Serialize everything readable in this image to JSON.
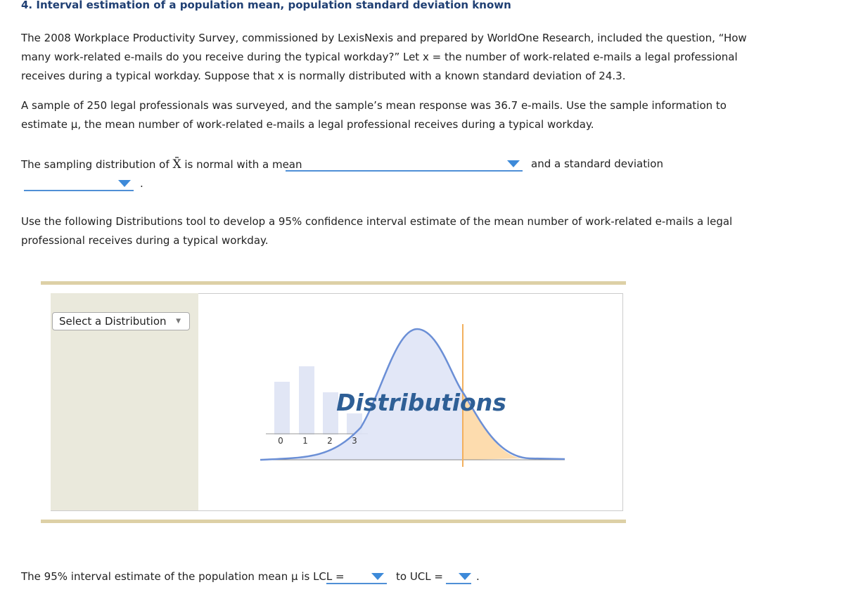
{
  "header": {
    "title": "4. Interval estimation of a population mean, population standard deviation known"
  },
  "paragraphs": [
    "The 2008 Workplace Productivity Survey, commissioned by LexisNexis and prepared by WorldOne Research, included the question, “How many work-related e-mails do you receive during the typical workday?” Let x = the number of work-related e-mails a legal professional receives during a typical workday. Suppose that x is normally distributed with a known standard deviation of 24.3.",
    "A sample of 250 legal professionals was surveyed, and the sample’s mean response was 36.7 e-mails. Use the sample information to estimate μ, the mean number of work-related e-mails a legal professional receives during a typical workday."
  ],
  "sampling": {
    "lead": "The sampling distribution of",
    "symbol": "X̄",
    "middle": "is normal with a mean",
    "after": "and a standard deviation",
    "end": "."
  },
  "instruction": "Use the following Distributions tool to develop a 95% confidence interval estimate of the mean number of work-related e-mails a legal professional receives during a typical workday.",
  "tool": {
    "select": "Select a Distribution",
    "logo": "Distributions",
    "axis_labels": [
      "0",
      "1",
      "2",
      "3"
    ]
  },
  "interval": {
    "lead": "The 95% interval estimate of the population mean μ is LCL =",
    "middle": "to UCL =",
    "end": "."
  }
}
